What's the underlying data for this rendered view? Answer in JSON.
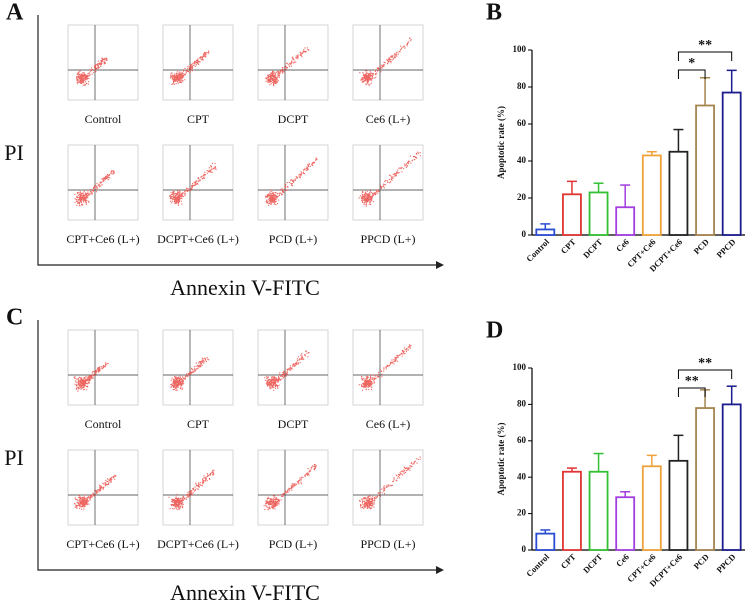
{
  "panels": [
    {
      "letter": "A",
      "y_label": "PI",
      "x_label": "Annexin V-FITC",
      "plots": [
        "Control",
        "CPT",
        "DCPT",
        "Ce6 (L+)",
        "CPT+Ce6 (L+)",
        "DCPT+Ce6 (L+)",
        "PCD (L+)",
        "PPCD (L+)"
      ]
    },
    {
      "letter": "C",
      "y_label": "PI",
      "x_label": "Annexin V-FITC",
      "plots": [
        "Control",
        "CPT",
        "DCPT",
        "Ce6 (L+)",
        "CPT+Ce6 (L+)",
        "DCPT+Ce6 (L+)",
        "PCD (L+)",
        "PPCD (L+)"
      ]
    }
  ],
  "chart_data": [
    {
      "type": "bar",
      "label": "B",
      "ylabel": "Apoptotic rate (%)",
      "categories": [
        "Control",
        "CPT",
        "DCPT",
        "Ce6",
        "CPT+Ce6",
        "DCPT+Ce6",
        "PCD",
        "PPCD"
      ],
      "values": [
        3,
        22,
        23,
        15,
        43,
        45,
        70,
        77
      ],
      "errors": [
        3,
        7,
        5,
        12,
        2,
        12,
        15,
        12
      ],
      "colors": [
        "#2a4bd4",
        "#e03434",
        "#33c033",
        "#a23de0",
        "#f0a23a",
        "#222222",
        "#a5834f",
        "#1c1c8e"
      ],
      "ylim": [
        0,
        100
      ],
      "yticks": [
        0,
        20,
        40,
        60,
        80,
        100
      ],
      "annotations": [
        "*",
        "**"
      ]
    },
    {
      "type": "bar",
      "label": "D",
      "ylabel": "Apoptotic rate (%)",
      "categories": [
        "Control",
        "CPT",
        "DCPT",
        "Ce6",
        "CPT+Ce6",
        "DCPT+Ce6",
        "PCD",
        "PPCD"
      ],
      "values": [
        9,
        43,
        43,
        29,
        46,
        49,
        78,
        80
      ],
      "errors": [
        2,
        2,
        10,
        3,
        6,
        14,
        10,
        10
      ],
      "colors": [
        "#2a4bd4",
        "#e03434",
        "#33c033",
        "#a23de0",
        "#f0a23a",
        "#222222",
        "#a5834f",
        "#1c1c8e"
      ],
      "ylim": [
        0,
        100
      ],
      "yticks": [
        0,
        20,
        40,
        60,
        80,
        100
      ],
      "annotations": [
        "**",
        "**"
      ]
    }
  ]
}
